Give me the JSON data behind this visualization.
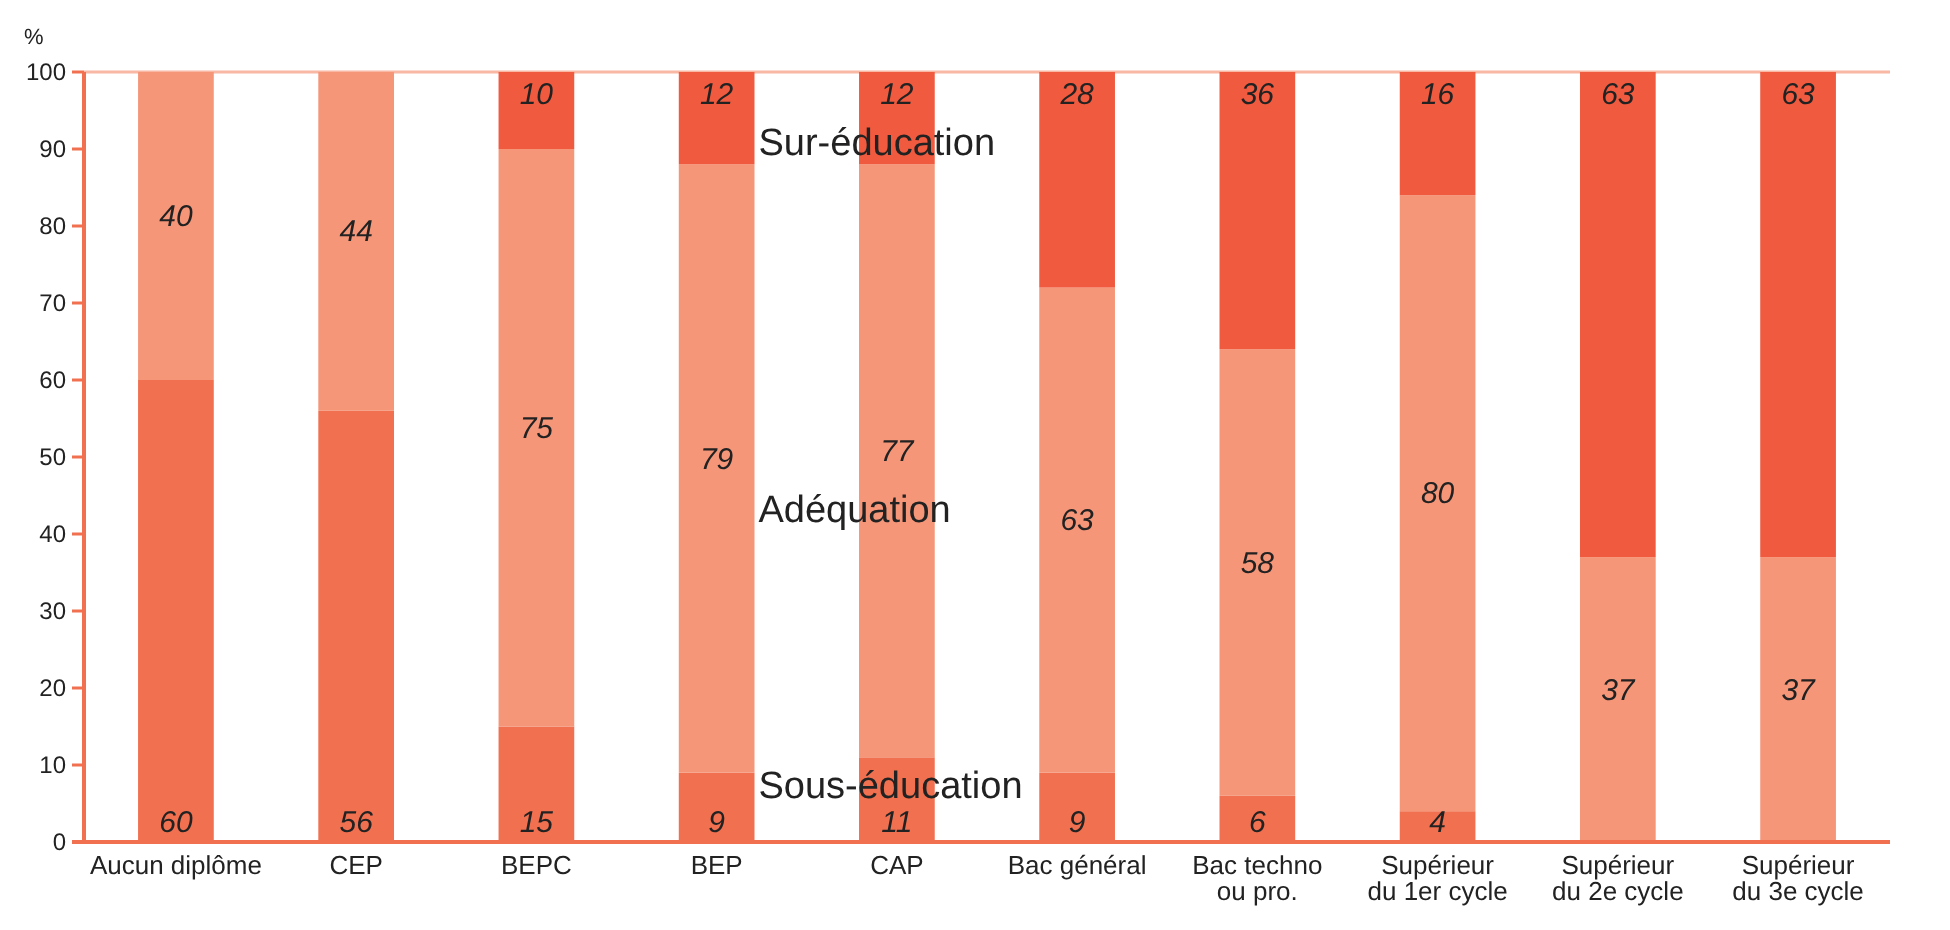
{
  "chart_data": {
    "type": "bar",
    "stacked": true,
    "ylabel": "%",
    "categories": [
      "Aucun diplôme",
      "CEP",
      "BEPC",
      "BEP",
      "CAP",
      "Bac général",
      "Bac techno ou pro.",
      "Supérieur du 1er cycle",
      "Supérieur du 2e cycle",
      "Supérieur du 3e cycle"
    ],
    "series": [
      {
        "name": "Sous-éducation",
        "color": "#f07050",
        "values": [
          60,
          56,
          15,
          9,
          11,
          9,
          6,
          4,
          0,
          0
        ],
        "value_labels": [
          "60",
          "56",
          "15",
          "9",
          "11",
          "9",
          "6",
          "4",
          null,
          null
        ]
      },
      {
        "name": "Adéquation",
        "color": "#f59679",
        "values": [
          40,
          44,
          75,
          79,
          77,
          63,
          58,
          80,
          37,
          37
        ],
        "value_labels": [
          "40",
          "44",
          "75",
          "79",
          "77",
          "63",
          "58",
          "80",
          "37",
          "37"
        ]
      },
      {
        "name": "Sur-éducation",
        "color": "#f05a3e",
        "values": [
          0,
          0,
          10,
          12,
          12,
          28,
          36,
          16,
          63,
          63
        ],
        "value_labels": [
          null,
          null,
          "10",
          "12",
          "12",
          "28",
          "36",
          "16",
          "63",
          "63"
        ]
      }
    ],
    "ylim": [
      0,
      100
    ],
    "yticks": [
      0,
      10,
      20,
      30,
      40,
      50,
      60,
      70,
      80,
      90,
      100
    ]
  }
}
